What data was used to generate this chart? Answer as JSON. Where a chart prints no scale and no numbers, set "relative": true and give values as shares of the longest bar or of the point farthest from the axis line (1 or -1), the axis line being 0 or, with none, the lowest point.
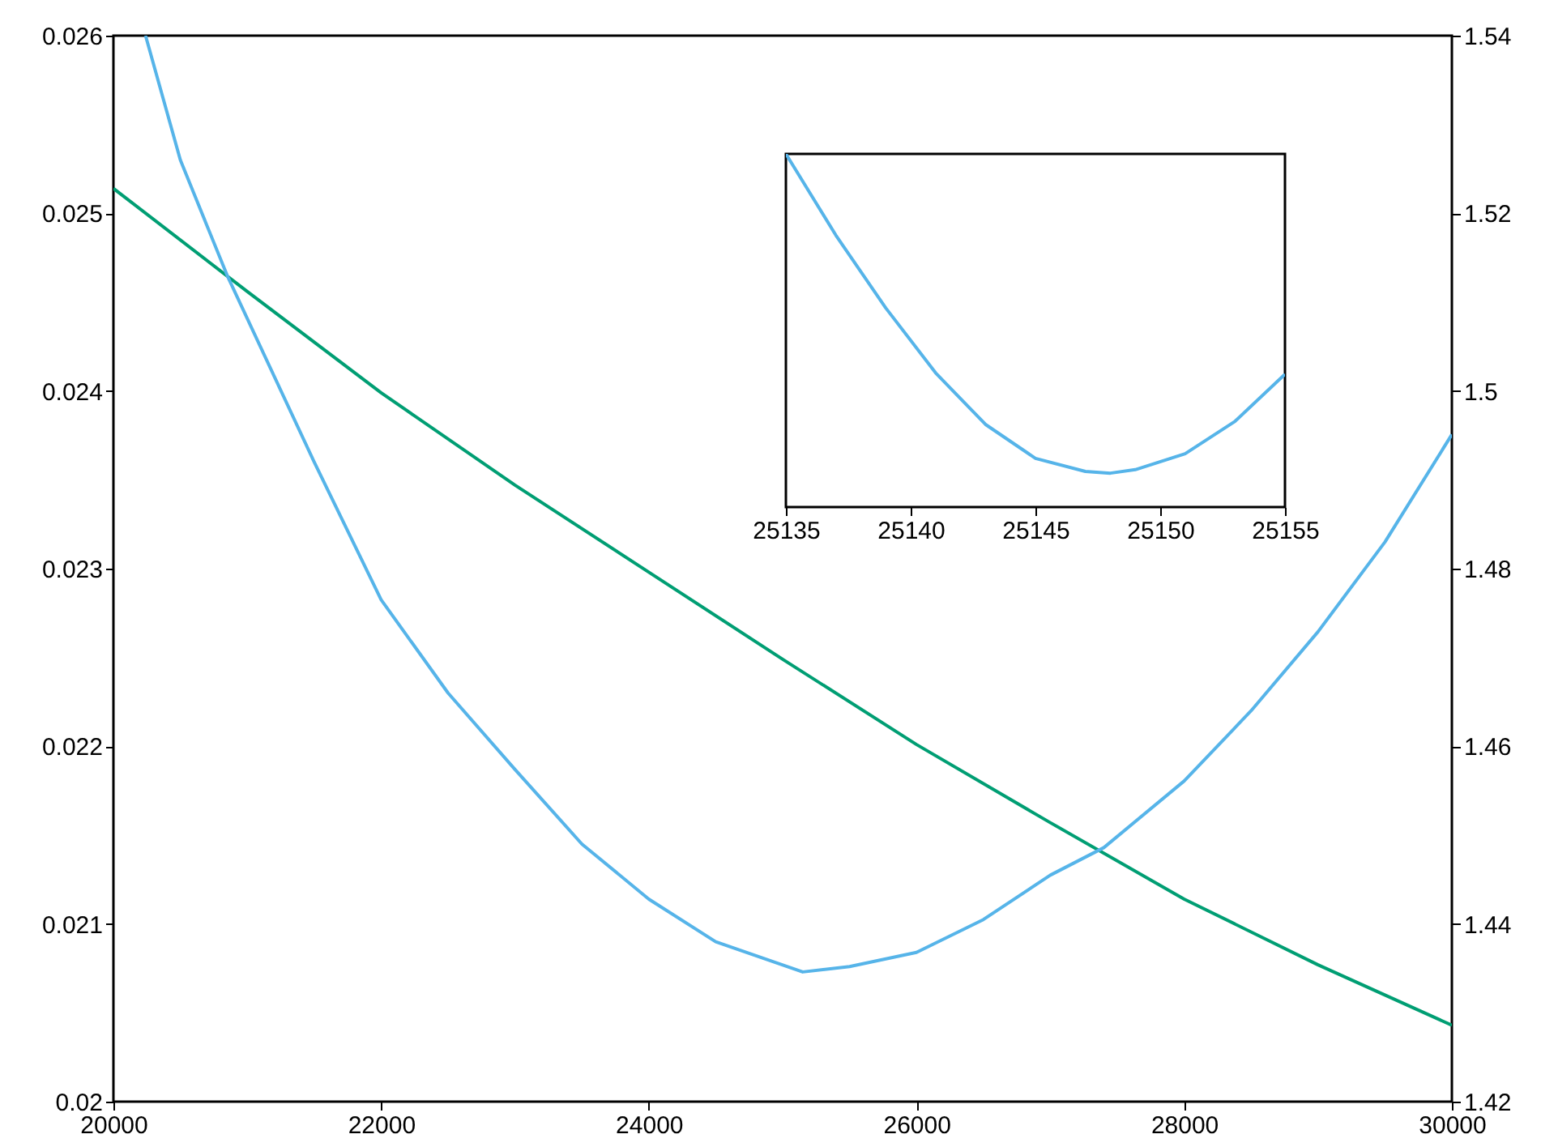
{
  "chart_data": [
    {
      "type": "line",
      "xlim": [
        20000,
        30000
      ],
      "xticks": [
        20000,
        22000,
        24000,
        26000,
        28000,
        30000
      ],
      "ylim": [
        0.02,
        0.026
      ],
      "yticks": [
        0.02,
        0.021,
        0.022,
        0.023,
        0.024,
        0.025,
        0.026
      ],
      "y2lim": [
        1.42,
        1.54
      ],
      "y2ticks": [
        1.42,
        1.44,
        1.46,
        1.48,
        1.5,
        1.52,
        1.54
      ],
      "grid": false,
      "series": [
        {
          "color": "#009e73",
          "x": [
            20000,
            21000,
            22000,
            23000,
            24000,
            25000,
            26000,
            27000,
            28000,
            29000,
            30000
          ],
          "values": [
            0.02514,
            0.02456,
            0.02399,
            0.02347,
            0.02298,
            0.02249,
            0.02201,
            0.02157,
            0.02114,
            0.02077,
            0.02043
          ]
        },
        {
          "color": "#56b4e9",
          "axis": "y2",
          "x": [
            20240,
            20500,
            20850,
            21500,
            22000,
            22500,
            23000,
            23500,
            24000,
            24500,
            25150,
            25500,
            26000,
            26500,
            27000,
            27400,
            28000,
            28500,
            29000,
            29500,
            30000
          ],
          "values": [
            1.54,
            1.526,
            1.513,
            1.492,
            1.4765,
            1.466,
            1.4574,
            1.449,
            1.4428,
            1.438,
            1.4346,
            1.4352,
            1.4368,
            1.4405,
            1.4455,
            1.4486,
            1.4561,
            1.464,
            1.4729,
            1.483,
            1.4951
          ]
        }
      ]
    },
    {
      "type": "line",
      "relative": true,
      "tick_labels": "x",
      "xlim": [
        25135,
        25155
      ],
      "xticks": [
        25135,
        25140,
        25145,
        25150,
        25155
      ],
      "series": [
        {
          "color": "#56b4e9",
          "x": [
            25135,
            25137,
            25139,
            25141,
            25143,
            25145,
            25147,
            25148,
            25149,
            25151,
            25153,
            25155
          ],
          "values": [
            1.0,
            0.77,
            0.564,
            0.38,
            0.234,
            0.138,
            0.101,
            0.096,
            0.106,
            0.151,
            0.243,
            0.376
          ]
        }
      ]
    }
  ]
}
